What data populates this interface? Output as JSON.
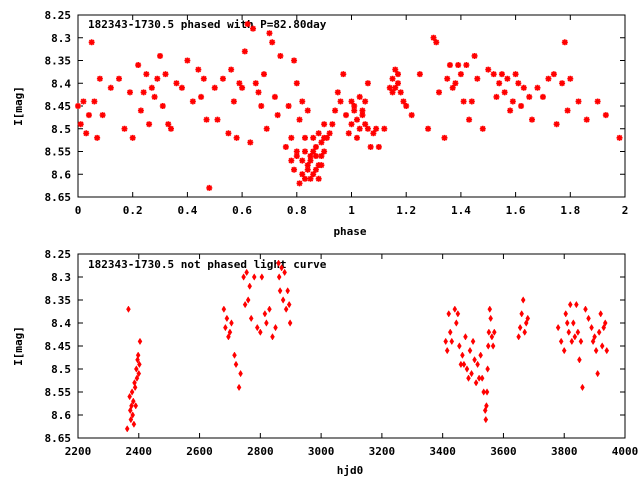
{
  "chart_data": [
    {
      "type": "scatter",
      "title": "182343-1730.5 phased with P=82.80day",
      "xlabel": "phase",
      "ylabel": "I[mag]",
      "xlim": [
        0,
        2
      ],
      "ylim": [
        8.25,
        8.65
      ],
      "y_inverted": true,
      "x_ticks": [
        "0",
        "0.2",
        "0.4",
        "0.6",
        "0.8",
        "1",
        "1.2",
        "1.4",
        "1.6",
        "1.8",
        "2"
      ],
      "y_ticks": [
        "8.25",
        "8.3",
        "8.35",
        "8.4",
        "8.45",
        "8.5",
        "8.55",
        "8.6",
        "8.65"
      ],
      "marker_color": "#ff0000",
      "points": [
        [
          0.0,
          8.45
        ],
        [
          0.01,
          8.49
        ],
        [
          0.02,
          8.44
        ],
        [
          0.03,
          8.51
        ],
        [
          0.04,
          8.47
        ],
        [
          0.05,
          8.31
        ],
        [
          0.06,
          8.44
        ],
        [
          0.07,
          8.52
        ],
        [
          0.08,
          8.39
        ],
        [
          0.09,
          8.47
        ],
        [
          0.12,
          8.41
        ],
        [
          0.15,
          8.39
        ],
        [
          0.17,
          8.5
        ],
        [
          0.19,
          8.42
        ],
        [
          0.2,
          8.52
        ],
        [
          0.22,
          8.36
        ],
        [
          0.23,
          8.46
        ],
        [
          0.24,
          8.42
        ],
        [
          0.25,
          8.38
        ],
        [
          0.26,
          8.49
        ],
        [
          0.27,
          8.41
        ],
        [
          0.28,
          8.43
        ],
        [
          0.29,
          8.39
        ],
        [
          0.3,
          8.34
        ],
        [
          0.31,
          8.45
        ],
        [
          0.32,
          8.38
        ],
        [
          0.33,
          8.49
        ],
        [
          0.34,
          8.5
        ],
        [
          0.36,
          8.4
        ],
        [
          0.38,
          8.41
        ],
        [
          0.4,
          8.35
        ],
        [
          0.42,
          8.44
        ],
        [
          0.44,
          8.37
        ],
        [
          0.45,
          8.43
        ],
        [
          0.46,
          8.39
        ],
        [
          0.47,
          8.48
        ],
        [
          0.48,
          8.63
        ],
        [
          0.5,
          8.41
        ],
        [
          0.51,
          8.48
        ],
        [
          0.53,
          8.39
        ],
        [
          0.55,
          8.51
        ],
        [
          0.56,
          8.37
        ],
        [
          0.57,
          8.44
        ],
        [
          0.58,
          8.52
        ],
        [
          0.59,
          8.4
        ],
        [
          0.6,
          8.41
        ],
        [
          0.61,
          8.33
        ],
        [
          0.62,
          8.27
        ],
        [
          0.63,
          8.53
        ],
        [
          0.64,
          8.28
        ],
        [
          0.65,
          8.4
        ],
        [
          0.66,
          8.42
        ],
        [
          0.67,
          8.45
        ],
        [
          0.68,
          8.38
        ],
        [
          0.69,
          8.5
        ],
        [
          0.7,
          8.29
        ],
        [
          0.71,
          8.31
        ],
        [
          0.72,
          8.43
        ],
        [
          0.73,
          8.47
        ],
        [
          0.74,
          8.34
        ],
        [
          0.76,
          8.54
        ],
        [
          0.77,
          8.45
        ],
        [
          0.78,
          8.52
        ],
        [
          0.79,
          8.35
        ],
        [
          0.8,
          8.4
        ],
        [
          0.81,
          8.48
        ],
        [
          0.82,
          8.44
        ],
        [
          0.83,
          8.52
        ],
        [
          0.84,
          8.46
        ],
        [
          0.85,
          8.56
        ],
        [
          0.78,
          8.57
        ],
        [
          0.79,
          8.59
        ],
        [
          0.8,
          8.56
        ],
        [
          0.81,
          8.62
        ],
        [
          0.82,
          8.6
        ],
        [
          0.83,
          8.55
        ],
        [
          0.84,
          8.58
        ],
        [
          0.85,
          8.61
        ],
        [
          0.86,
          8.6
        ],
        [
          0.87,
          8.59
        ],
        [
          0.8,
          8.55
        ],
        [
          0.82,
          8.57
        ],
        [
          0.83,
          8.61
        ],
        [
          0.84,
          8.59
        ],
        [
          0.85,
          8.57
        ],
        [
          0.86,
          8.55
        ],
        [
          0.87,
          8.56
        ],
        [
          0.88,
          8.58
        ],
        [
          0.89,
          8.53
        ],
        [
          0.9,
          8.55
        ],
        [
          0.86,
          8.52
        ],
        [
          0.87,
          8.54
        ],
        [
          0.88,
          8.51
        ],
        [
          0.89,
          8.56
        ],
        [
          0.9,
          8.52
        ],
        [
          0.88,
          8.61
        ],
        [
          0.89,
          8.58
        ],
        [
          0.9,
          8.49
        ],
        [
          0.91,
          8.52
        ],
        [
          0.92,
          8.51
        ],
        [
          0.93,
          8.49
        ],
        [
          0.94,
          8.46
        ],
        [
          0.95,
          8.42
        ],
        [
          0.96,
          8.44
        ],
        [
          0.97,
          8.38
        ],
        [
          0.98,
          8.47
        ],
        [
          0.99,
          8.51
        ],
        [
          1.0,
          8.49
        ],
        [
          1.01,
          8.45
        ],
        [
          1.02,
          8.48
        ],
        [
          1.0,
          8.44
        ],
        [
          1.01,
          8.46
        ],
        [
          1.02,
          8.52
        ],
        [
          1.03,
          8.5
        ],
        [
          1.04,
          8.47
        ],
        [
          1.05,
          8.44
        ],
        [
          1.06,
          8.5
        ],
        [
          1.07,
          8.54
        ],
        [
          1.08,
          8.51
        ],
        [
          1.09,
          8.5
        ],
        [
          1.03,
          8.43
        ],
        [
          1.04,
          8.46
        ],
        [
          1.05,
          8.49
        ],
        [
          1.06,
          8.4
        ],
        [
          1.1,
          8.54
        ],
        [
          1.12,
          8.5
        ],
        [
          1.14,
          8.41
        ],
        [
          1.15,
          8.42
        ],
        [
          1.16,
          8.37
        ],
        [
          1.17,
          8.38
        ],
        [
          1.15,
          8.39
        ],
        [
          1.16,
          8.41
        ],
        [
          1.17,
          8.4
        ],
        [
          1.18,
          8.42
        ],
        [
          1.19,
          8.44
        ],
        [
          1.2,
          8.45
        ],
        [
          1.22,
          8.47
        ],
        [
          1.25,
          8.38
        ],
        [
          1.28,
          8.5
        ],
        [
          1.3,
          8.3
        ],
        [
          1.31,
          8.31
        ],
        [
          1.32,
          8.42
        ],
        [
          1.34,
          8.52
        ],
        [
          1.35,
          8.39
        ],
        [
          1.36,
          8.36
        ],
        [
          1.37,
          8.41
        ],
        [
          1.38,
          8.4
        ],
        [
          1.39,
          8.36
        ],
        [
          1.4,
          8.38
        ],
        [
          1.41,
          8.44
        ],
        [
          1.42,
          8.36
        ],
        [
          1.43,
          8.48
        ],
        [
          1.44,
          8.44
        ],
        [
          1.45,
          8.34
        ],
        [
          1.46,
          8.39
        ],
        [
          1.48,
          8.5
        ],
        [
          1.5,
          8.37
        ],
        [
          1.52,
          8.38
        ],
        [
          1.53,
          8.43
        ],
        [
          1.54,
          8.4
        ],
        [
          1.55,
          8.38
        ],
        [
          1.56,
          8.42
        ],
        [
          1.57,
          8.39
        ],
        [
          1.58,
          8.46
        ],
        [
          1.59,
          8.44
        ],
        [
          1.6,
          8.38
        ],
        [
          1.61,
          8.4
        ],
        [
          1.62,
          8.45
        ],
        [
          1.63,
          8.41
        ],
        [
          1.65,
          8.43
        ],
        [
          1.66,
          8.48
        ],
        [
          1.68,
          8.41
        ],
        [
          1.7,
          8.43
        ],
        [
          1.72,
          8.39
        ],
        [
          1.74,
          8.38
        ],
        [
          1.75,
          8.49
        ],
        [
          1.77,
          8.4
        ],
        [
          1.78,
          8.31
        ],
        [
          1.79,
          8.46
        ],
        [
          1.8,
          8.39
        ],
        [
          1.83,
          8.44
        ],
        [
          1.86,
          8.48
        ],
        [
          1.9,
          8.44
        ],
        [
          1.93,
          8.47
        ],
        [
          1.98,
          8.52
        ]
      ]
    },
    {
      "type": "scatter",
      "title": "182343-1730.5 not phased light curve",
      "xlabel": "hjd0",
      "ylabel": "I[mag]",
      "xlim": [
        2200,
        4000
      ],
      "ylim": [
        8.25,
        8.65
      ],
      "y_inverted": true,
      "x_ticks": [
        "2200",
        "2400",
        "2600",
        "2800",
        "3000",
        "3200",
        "3400",
        "3600",
        "3800",
        "4000"
      ],
      "y_ticks": [
        "8.25",
        "8.3",
        "8.35",
        "8.4",
        "8.45",
        "8.5",
        "8.55",
        "8.6",
        "8.65"
      ],
      "marker_color": "#ff0000",
      "points": [
        [
          2362,
          8.63
        ],
        [
          2366,
          8.37
        ],
        [
          2370,
          8.56
        ],
        [
          2372,
          8.59
        ],
        [
          2374,
          8.61
        ],
        [
          2376,
          8.58
        ],
        [
          2378,
          8.55
        ],
        [
          2380,
          8.6
        ],
        [
          2382,
          8.57
        ],
        [
          2384,
          8.62
        ],
        [
          2386,
          8.53
        ],
        [
          2388,
          8.54
        ],
        [
          2390,
          8.58
        ],
        [
          2392,
          8.5
        ],
        [
          2394,
          8.52
        ],
        [
          2396,
          8.48
        ],
        [
          2398,
          8.47
        ],
        [
          2400,
          8.51
        ],
        [
          2402,
          8.49
        ],
        [
          2404,
          8.44
        ],
        [
          2680,
          8.37
        ],
        [
          2685,
          8.41
        ],
        [
          2690,
          8.39
        ],
        [
          2695,
          8.43
        ],
        [
          2700,
          8.42
        ],
        [
          2705,
          8.4
        ],
        [
          2715,
          8.47
        ],
        [
          2720,
          8.49
        ],
        [
          2730,
          8.54
        ],
        [
          2735,
          8.51
        ],
        [
          2745,
          8.3
        ],
        [
          2750,
          8.36
        ],
        [
          2755,
          8.29
        ],
        [
          2760,
          8.35
        ],
        [
          2765,
          8.32
        ],
        [
          2770,
          8.39
        ],
        [
          2780,
          8.3
        ],
        [
          2790,
          8.41
        ],
        [
          2800,
          8.42
        ],
        [
          2805,
          8.3
        ],
        [
          2815,
          8.38
        ],
        [
          2820,
          8.4
        ],
        [
          2830,
          8.37
        ],
        [
          2840,
          8.43
        ],
        [
          2850,
          8.41
        ],
        [
          2860,
          8.27
        ],
        [
          2862,
          8.3
        ],
        [
          2865,
          8.33
        ],
        [
          2870,
          8.28
        ],
        [
          2875,
          8.35
        ],
        [
          2880,
          8.29
        ],
        [
          2885,
          8.37
        ],
        [
          2890,
          8.33
        ],
        [
          2895,
          8.36
        ],
        [
          2898,
          8.4
        ],
        [
          3410,
          8.44
        ],
        [
          3415,
          8.46
        ],
        [
          3420,
          8.38
        ],
        [
          3425,
          8.42
        ],
        [
          3430,
          8.44
        ],
        [
          3440,
          8.37
        ],
        [
          3445,
          8.4
        ],
        [
          3450,
          8.38
        ],
        [
          3455,
          8.45
        ],
        [
          3460,
          8.49
        ],
        [
          3465,
          8.47
        ],
        [
          3470,
          8.49
        ],
        [
          3475,
          8.43
        ],
        [
          3480,
          8.5
        ],
        [
          3485,
          8.52
        ],
        [
          3490,
          8.46
        ],
        [
          3495,
          8.51
        ],
        [
          3500,
          8.44
        ],
        [
          3505,
          8.48
        ],
        [
          3510,
          8.53
        ],
        [
          3515,
          8.49
        ],
        [
          3520,
          8.52
        ],
        [
          3525,
          8.47
        ],
        [
          3530,
          8.52
        ],
        [
          3535,
          8.55
        ],
        [
          3540,
          8.59
        ],
        [
          3542,
          8.61
        ],
        [
          3544,
          8.58
        ],
        [
          3546,
          8.55
        ],
        [
          3548,
          8.5
        ],
        [
          3550,
          8.45
        ],
        [
          3552,
          8.42
        ],
        [
          3555,
          8.37
        ],
        [
          3558,
          8.39
        ],
        [
          3562,
          8.43
        ],
        [
          3566,
          8.45
        ],
        [
          3570,
          8.42
        ],
        [
          3650,
          8.43
        ],
        [
          3655,
          8.41
        ],
        [
          3660,
          8.38
        ],
        [
          3665,
          8.35
        ],
        [
          3670,
          8.42
        ],
        [
          3675,
          8.4
        ],
        [
          3680,
          8.39
        ],
        [
          3780,
          8.41
        ],
        [
          3790,
          8.44
        ],
        [
          3800,
          8.46
        ],
        [
          3805,
          8.38
        ],
        [
          3810,
          8.4
        ],
        [
          3815,
          8.42
        ],
        [
          3820,
          8.36
        ],
        [
          3825,
          8.44
        ],
        [
          3830,
          8.4
        ],
        [
          3835,
          8.43
        ],
        [
          3840,
          8.36
        ],
        [
          3845,
          8.42
        ],
        [
          3850,
          8.48
        ],
        [
          3855,
          8.44
        ],
        [
          3860,
          8.54
        ],
        [
          3870,
          8.37
        ],
        [
          3880,
          8.39
        ],
        [
          3890,
          8.41
        ],
        [
          3895,
          8.44
        ],
        [
          3900,
          8.43
        ],
        [
          3905,
          8.46
        ],
        [
          3910,
          8.51
        ],
        [
          3915,
          8.42
        ],
        [
          3920,
          8.38
        ],
        [
          3925,
          8.45
        ],
        [
          3930,
          8.41
        ],
        [
          3935,
          8.4
        ],
        [
          3940,
          8.46
        ]
      ]
    }
  ]
}
